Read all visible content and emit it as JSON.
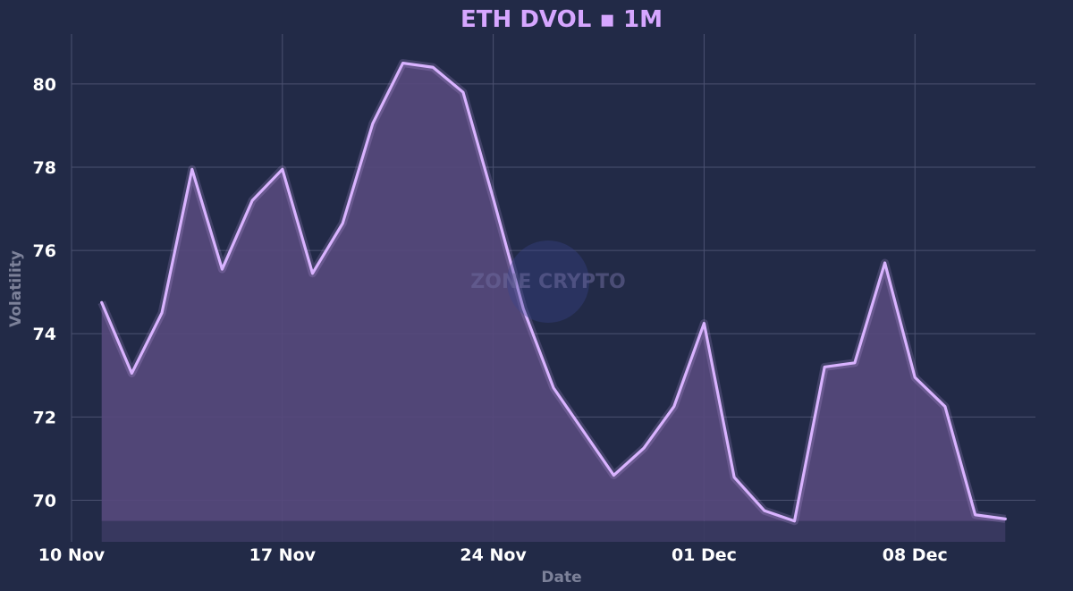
{
  "chart_data": {
    "type": "area",
    "title": "ETH DVOL ▪ 1M",
    "xlabel": "Date",
    "ylabel": "Volatility",
    "x_ticks": [
      "10 Nov",
      "17 Nov",
      "24 Nov",
      "01 Dec",
      "08 Dec"
    ],
    "y_ticks": [
      70,
      72,
      74,
      76,
      78,
      80
    ],
    "x_range": [
      "2024-11-10",
      "2024-12-12"
    ],
    "ylim": [
      69.0,
      81.2
    ],
    "grid": true,
    "baseline": 69.5,
    "colors": {
      "line": "#d9b3ff",
      "fill": "#56497c",
      "background": "#222a47",
      "title": "#d6a6ff"
    },
    "watermark": "ZONE CRYPTO",
    "x": [
      "2024-11-11",
      "2024-11-12",
      "2024-11-13",
      "2024-11-14",
      "2024-11-15",
      "2024-11-16",
      "2024-11-17",
      "2024-11-18",
      "2024-11-19",
      "2024-11-20",
      "2024-11-21",
      "2024-11-22",
      "2024-11-23",
      "2024-11-24",
      "2024-11-25",
      "2024-11-26",
      "2024-11-27",
      "2024-11-28",
      "2024-11-29",
      "2024-11-30",
      "2024-12-01",
      "2024-12-02",
      "2024-12-03",
      "2024-12-04",
      "2024-12-05",
      "2024-12-06",
      "2024-12-07",
      "2024-12-08",
      "2024-12-09",
      "2024-12-10",
      "2024-12-11"
    ],
    "series": [
      {
        "values": [
          74.75,
          73.05,
          74.5,
          77.95,
          75.55,
          77.2,
          77.95,
          75.45,
          76.65,
          79.05,
          80.5,
          80.4,
          79.8,
          77.25,
          74.6,
          72.7,
          71.65,
          70.6,
          71.25,
          72.25,
          74.25,
          70.55,
          69.75,
          69.5,
          73.2,
          73.3,
          75.7,
          72.95,
          72.25,
          69.65,
          69.55
        ]
      }
    ]
  }
}
